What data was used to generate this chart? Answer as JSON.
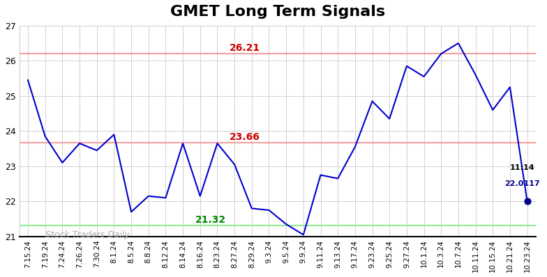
{
  "title": "GMET Long Term Signals",
  "x_labels": [
    "7.15.24",
    "7.19.24",
    "7.24.24",
    "7.26.24",
    "7.30.24",
    "8.1.24",
    "8.5.24",
    "8.8.24",
    "8.12.24",
    "8.14.24",
    "8.16.24",
    "8.23.24",
    "8.27.24",
    "8.29.24",
    "9.3.24",
    "9.5.24",
    "9.9.24",
    "9.11.24",
    "9.13.24",
    "9.17.24",
    "9.23.24",
    "9.25.24",
    "9.27.24",
    "10.1.24",
    "10.3.24",
    "10.7.24",
    "10.11.24",
    "10.15.24",
    "10.21.24",
    "10.23.24"
  ],
  "y_values": [
    25.45,
    23.85,
    23.1,
    23.65,
    23.45,
    23.9,
    21.7,
    22.15,
    22.1,
    23.65,
    22.15,
    23.65,
    23.05,
    21.8,
    21.75,
    21.35,
    21.05,
    22.75,
    22.65,
    23.55,
    24.85,
    24.35,
    25.85,
    25.55,
    26.2,
    26.5,
    25.6,
    24.6,
    25.25,
    22.0
  ],
  "hline_upper": 26.21,
  "hline_middle": 23.66,
  "hline_lower": 21.32,
  "hline_upper_color": "#f4a0a0",
  "hline_middle_color": "#f4a0a0",
  "hline_lower_color": "#90ee90",
  "hline_upper_label_color": "#cc0000",
  "hline_middle_label_color": "#cc0000",
  "hline_lower_label_color": "#008800",
  "watermark": "Stock Traders Daily",
  "watermark_color": "#aaaaaa",
  "line_color": "#0000cc",
  "dot_color": "#00008B",
  "annotation_time": "11:14",
  "annotation_price": "22.0117",
  "annotation_color": "#00008B",
  "ylim_min": 21.0,
  "ylim_max": 27.0,
  "yticks": [
    21,
    22,
    23,
    24,
    25,
    26,
    27
  ],
  "background_color": "#ffffff",
  "grid_color": "#d0d0d0",
  "title_fontsize": 16,
  "axis_bottom_color": "#000000"
}
